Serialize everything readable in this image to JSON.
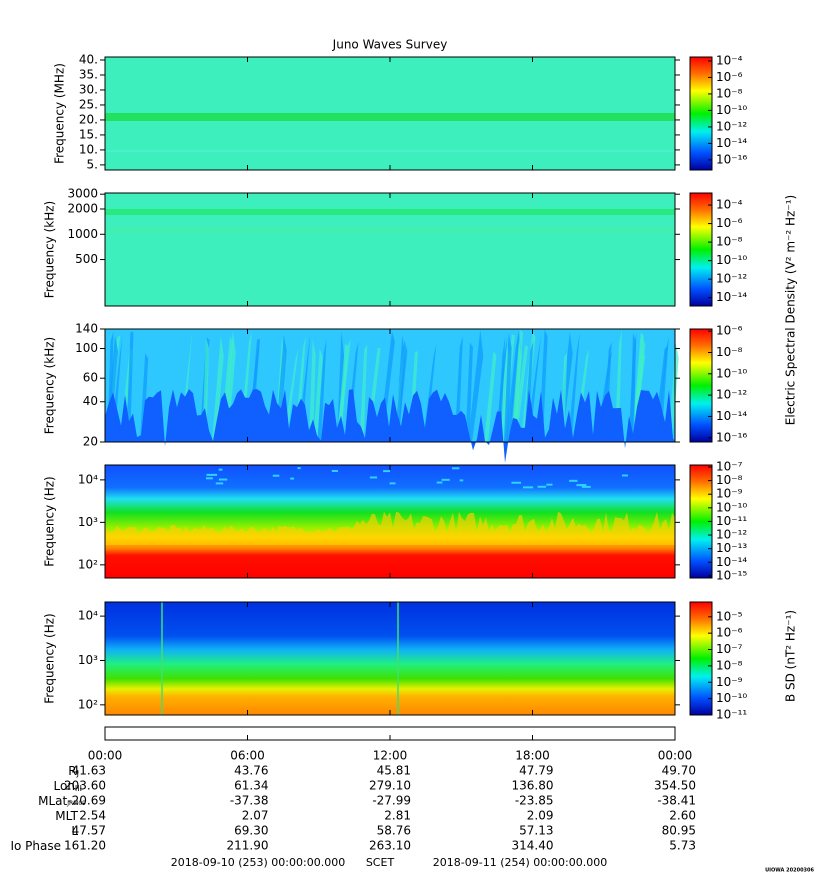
{
  "title": "Juno Waves Survey",
  "xlim": [
    0,
    24
  ],
  "xticks": [
    {
      "value": 0,
      "label": "00:00"
    },
    {
      "value": 6,
      "label": "06:00"
    },
    {
      "value": 12,
      "label": "12:00"
    },
    {
      "value": 18,
      "label": "18:00"
    },
    {
      "value": 24,
      "label": "00:00"
    }
  ],
  "panels": [
    {
      "ylabel": "Frequency (MHz)",
      "log": false,
      "ylim": [
        3.3,
        41
      ],
      "yticks": [
        {
          "value": 40,
          "label": "40."
        },
        {
          "value": 35,
          "label": "35."
        },
        {
          "value": 30,
          "label": "30."
        },
        {
          "value": 25,
          "label": "25."
        },
        {
          "value": 20,
          "label": "20."
        },
        {
          "value": 15,
          "label": "15."
        },
        {
          "value": 10,
          "label": "10."
        },
        {
          "value": 5,
          "label": "5."
        }
      ],
      "clim": [
        0.0003,
        6e-18
      ],
      "cticks": [
        {
          "value": 0.0001,
          "label": "10⁻⁴"
        },
        {
          "value": 1e-06,
          "label": "10⁻⁶"
        },
        {
          "value": 1e-08,
          "label": "10⁻⁸"
        },
        {
          "value": 1e-10,
          "label": "10⁻¹⁰"
        },
        {
          "value": 1e-12,
          "label": "10⁻¹²"
        },
        {
          "value": 1e-14,
          "label": "10⁻¹⁴"
        },
        {
          "value": 1e-16,
          "label": "10⁻¹⁶"
        }
      ]
    },
    {
      "ylabel": "Frequency (kHz)",
      "log": true,
      "ylim": [
        140,
        3100
      ],
      "yticks": [
        3000,
        2000,
        1000,
        500
      ],
      "clim": [
        0.002,
        1.26e-15
      ],
      "cticks": [
        {
          "value": 0.0001,
          "label": "10⁻⁴"
        },
        {
          "value": 1e-06,
          "label": "10⁻⁶"
        },
        {
          "value": 1e-08,
          "label": "10⁻⁸"
        },
        {
          "value": 1e-10,
          "label": "10⁻¹⁰"
        },
        {
          "value": 1e-12,
          "label": "10⁻¹²"
        },
        {
          "value": 1e-14,
          "label": "10⁻¹⁴"
        }
      ]
    },
    {
      "ylabel": "Frequency (kHz)",
      "log": true,
      "ylim": [
        20,
        140
      ],
      "yticks": [
        140,
        100,
        60,
        40,
        20
      ],
      "clim": [
        1.6e-06,
        4e-17
      ],
      "cticks": [
        {
          "value": 1e-06,
          "label": "10⁻⁶"
        },
        {
          "value": 1e-08,
          "label": "10⁻⁸"
        },
        {
          "value": 1e-10,
          "label": "10⁻¹⁰"
        },
        {
          "value": 1e-12,
          "label": "10⁻¹²"
        },
        {
          "value": 1e-14,
          "label": "10⁻¹⁴"
        },
        {
          "value": 1e-16,
          "label": "10⁻¹⁶"
        }
      ]
    },
    {
      "ylabel": "Frequency (Hz)",
      "log": true,
      "ylim": [
        49,
        22400
      ],
      "yticks": [
        {
          "value": 10000,
          "label": "10⁴"
        },
        {
          "value": 1000,
          "label": "10³"
        },
        {
          "value": 100,
          "label": "10²"
        }
      ],
      "clim": [
        1.4e-07,
        7e-16
      ],
      "cticks": [
        {
          "value": 1e-07,
          "label": "10⁻⁷"
        },
        {
          "value": 1e-08,
          "label": "10⁻⁸"
        },
        {
          "value": 1e-09,
          "label": "10⁻⁹"
        },
        {
          "value": 1e-10,
          "label": "10⁻¹⁰"
        },
        {
          "value": 1e-11,
          "label": "10⁻¹¹"
        },
        {
          "value": 1e-12,
          "label": "10⁻¹²"
        },
        {
          "value": 1e-13,
          "label": "10⁻¹³"
        },
        {
          "value": 1e-14,
          "label": "10⁻¹⁴"
        },
        {
          "value": 1e-15,
          "label": "10⁻¹⁵"
        }
      ]
    },
    {
      "ylabel": "Frequency (Hz)",
      "log": true,
      "ylim": [
        59,
        20800
      ],
      "yticks": [
        {
          "value": 10000,
          "label": "10⁴"
        },
        {
          "value": 1000,
          "label": "10³"
        },
        {
          "value": 100,
          "label": "10²"
        }
      ],
      "clim": [
        8e-05,
        1e-11
      ],
      "cticks": [
        {
          "value": 1e-05,
          "label": "10⁻⁵"
        },
        {
          "value": 1e-06,
          "label": "10⁻⁶"
        },
        {
          "value": 1e-07,
          "label": "10⁻⁷"
        },
        {
          "value": 1e-08,
          "label": "10⁻⁸"
        },
        {
          "value": 1e-09,
          "label": "10⁻⁹"
        },
        {
          "value": 1e-10,
          "label": "10⁻¹⁰"
        },
        {
          "value": 1e-11,
          "label": "10⁻¹¹"
        }
      ]
    }
  ],
  "efield_label": "Electric Spectral Density (V² m⁻² Hz⁻¹)",
  "bfield_label": "B SD (nT² Hz⁻¹)",
  "ephemeris": [
    {
      "label": "R",
      "sub": "J",
      "values": [
        "41.63",
        "43.76",
        "45.81",
        "47.79",
        "49.70"
      ]
    },
    {
      "label": "Lon",
      "sub": "III",
      "values": [
        "203.60",
        "61.34",
        "279.10",
        "136.80",
        "354.50"
      ]
    },
    {
      "label": "MLat",
      "sub": "JRM09",
      "values": [
        "-20.69",
        "-37.38",
        "-27.99",
        "-23.85",
        "-38.41"
      ]
    },
    {
      "label": "MLT",
      "values": [
        "2.54",
        "2.07",
        "2.81",
        "2.09",
        "2.60"
      ]
    },
    {
      "label": "L",
      "values": [
        "47.57",
        "69.30",
        "58.76",
        "57.13",
        "80.95"
      ]
    },
    {
      "label": "Io Phase",
      "values": [
        "161.20",
        "211.90",
        "263.10",
        "314.40",
        "5.73"
      ]
    }
  ],
  "footer": {
    "start": "2018-09-10 (253) 00:00:00.000",
    "scet": "SCET",
    "end": "2018-09-11 (254) 00:00:00.000"
  },
  "stamp": "UIOWA 20200306"
}
